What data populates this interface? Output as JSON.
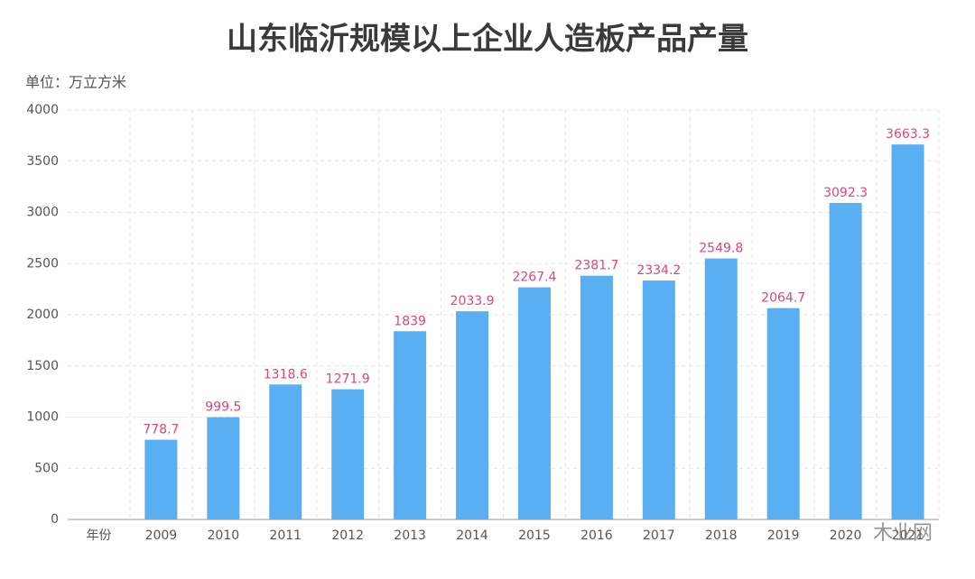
{
  "chart_data": {
    "type": "bar",
    "title": "山东临沂规模以上企业人造板产品产量",
    "unit_label": "单位：万立方米",
    "categories": [
      "年份",
      "2009",
      "2010",
      "2011",
      "2012",
      "2013",
      "2014",
      "2015",
      "2016",
      "2017",
      "2018",
      "2019",
      "2020",
      "2021"
    ],
    "values": [
      null,
      778.7,
      999.5,
      1318.6,
      1271.9,
      1839,
      2033.9,
      2267.4,
      2381.7,
      2334.2,
      2549.8,
      2064.7,
      3092.3,
      3663.3
    ],
    "color": "#5aaef2",
    "label_color": "#e0457b",
    "ylim": [
      0,
      4000
    ],
    "yticks": [
      0,
      500,
      1000,
      1500,
      2000,
      2500,
      3000,
      3500,
      4000
    ],
    "grid": true,
    "watermark": "木业网"
  }
}
